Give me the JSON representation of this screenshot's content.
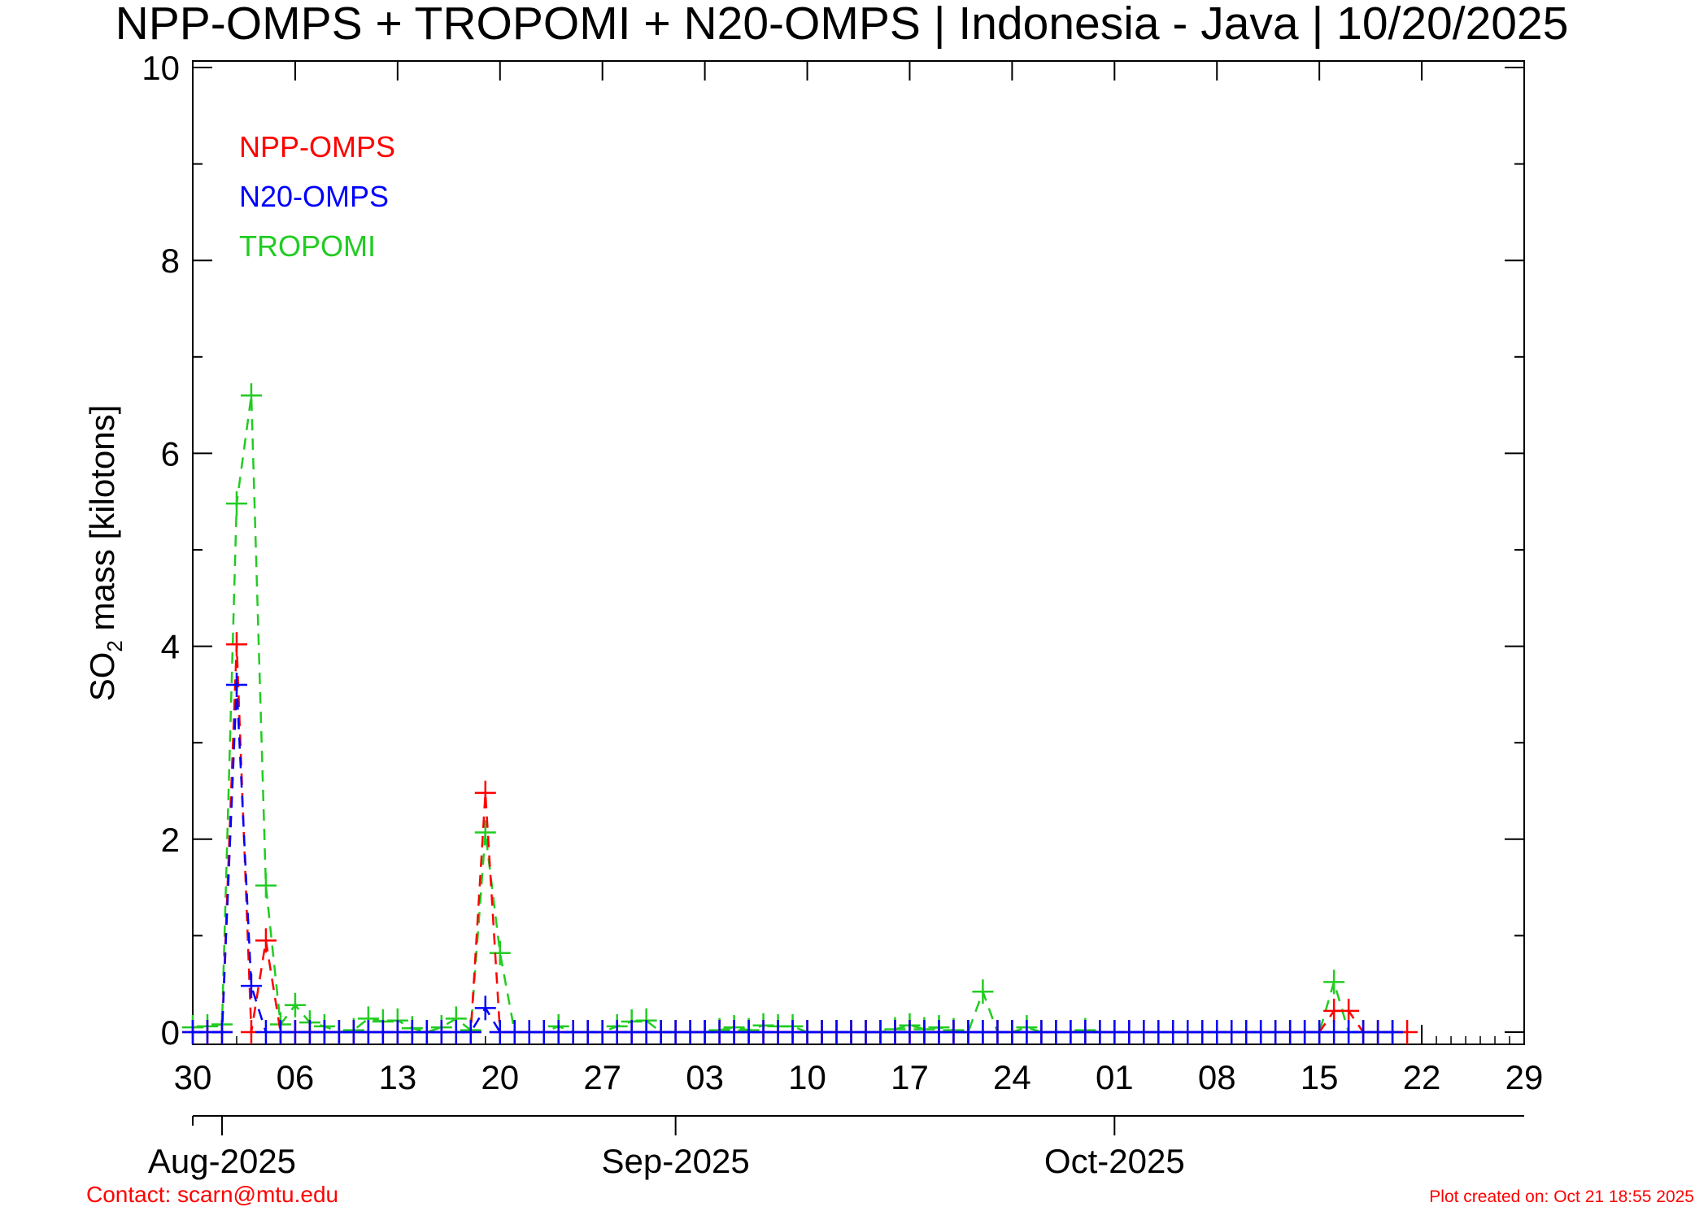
{
  "title": "NPP-OMPS + TROPOMI + N20-OMPS | Indonesia - Java | 10/20/2025",
  "footer": {
    "contact": "Contact: scarn@mtu.edu",
    "created": "Plot created on: Oct 21 18:55 2025"
  },
  "chart_data": {
    "type": "line",
    "ylabel_main": "SO",
    "ylabel_sub": "2",
    "ylabel_rest": " mass [kilotons]",
    "ylim": [
      0,
      10
    ],
    "y_ticks": [
      0,
      2,
      4,
      6,
      8,
      10
    ],
    "x_axis": {
      "start": "2025-07-30",
      "end": "2025-10-29",
      "tick_dates": [
        "2025-07-30",
        "2025-08-06",
        "2025-08-13",
        "2025-08-20",
        "2025-08-27",
        "2025-09-03",
        "2025-09-10",
        "2025-09-17",
        "2025-09-24",
        "2025-10-01",
        "2025-10-08",
        "2025-10-15",
        "2025-10-22",
        "2025-10-29"
      ],
      "tick_labels": [
        "30",
        "06",
        "13",
        "20",
        "27",
        "03",
        "10",
        "17",
        "24",
        "01",
        "08",
        "15",
        "22",
        "29"
      ],
      "months": [
        {
          "label": "Aug-2025",
          "date": "2025-08-01"
        },
        {
          "label": "Sep-2025",
          "date": "2025-09-01"
        },
        {
          "label": "Oct-2025",
          "date": "2025-10-01"
        }
      ]
    },
    "grid": false,
    "legend_position": "top-left",
    "series": [
      {
        "name": "NPP-OMPS",
        "color": "#ff0000",
        "points": [
          [
            "2025-07-30",
            0
          ],
          [
            "2025-07-31",
            0
          ],
          [
            "2025-08-01",
            0
          ],
          [
            "2025-08-02",
            4.02
          ],
          [
            "2025-08-03",
            0
          ],
          [
            "2025-08-04",
            0.95
          ],
          [
            "2025-08-05",
            0
          ],
          [
            "2025-08-06",
            0
          ],
          [
            "2025-08-07",
            0
          ],
          [
            "2025-08-08",
            0
          ],
          [
            "2025-08-09",
            0
          ],
          [
            "2025-08-10",
            0
          ],
          [
            "2025-08-11",
            0
          ],
          [
            "2025-08-12",
            0
          ],
          [
            "2025-08-13",
            0
          ],
          [
            "2025-08-14",
            0
          ],
          [
            "2025-08-15",
            0
          ],
          [
            "2025-08-16",
            0
          ],
          [
            "2025-08-17",
            0
          ],
          [
            "2025-08-18",
            0
          ],
          [
            "2025-08-19",
            2.48
          ],
          [
            "2025-08-20",
            0
          ],
          [
            "2025-08-21",
            0
          ],
          [
            "2025-08-22",
            0
          ],
          [
            "2025-08-23",
            0
          ],
          [
            "2025-08-24",
            0
          ],
          [
            "2025-08-25",
            0
          ],
          [
            "2025-08-26",
            0
          ],
          [
            "2025-08-27",
            0
          ],
          [
            "2025-08-28",
            0
          ],
          [
            "2025-08-29",
            0
          ],
          [
            "2025-08-30",
            0
          ],
          [
            "2025-08-31",
            0
          ],
          [
            "2025-09-01",
            0
          ],
          [
            "2025-09-02",
            0
          ],
          [
            "2025-09-03",
            0
          ],
          [
            "2025-09-04",
            0
          ],
          [
            "2025-09-05",
            0
          ],
          [
            "2025-09-06",
            0
          ],
          [
            "2025-09-07",
            0
          ],
          [
            "2025-09-08",
            0
          ],
          [
            "2025-09-09",
            0
          ],
          [
            "2025-09-10",
            0
          ],
          [
            "2025-09-11",
            0
          ],
          [
            "2025-09-12",
            0
          ],
          [
            "2025-09-13",
            0
          ],
          [
            "2025-09-14",
            0
          ],
          [
            "2025-09-15",
            0
          ],
          [
            "2025-09-16",
            0
          ],
          [
            "2025-09-17",
            0
          ],
          [
            "2025-09-18",
            0
          ],
          [
            "2025-09-19",
            0
          ],
          [
            "2025-09-20",
            0
          ],
          [
            "2025-09-21",
            0
          ],
          [
            "2025-09-22",
            0
          ],
          [
            "2025-09-23",
            0
          ],
          [
            "2025-09-24",
            0
          ],
          [
            "2025-09-25",
            0
          ],
          [
            "2025-09-26",
            0
          ],
          [
            "2025-09-27",
            0
          ],
          [
            "2025-09-28",
            0
          ],
          [
            "2025-09-29",
            0
          ],
          [
            "2025-09-30",
            0
          ],
          [
            "2025-10-01",
            0
          ],
          [
            "2025-10-02",
            0
          ],
          [
            "2025-10-03",
            0
          ],
          [
            "2025-10-04",
            0
          ],
          [
            "2025-10-05",
            0
          ],
          [
            "2025-10-06",
            0
          ],
          [
            "2025-10-07",
            0
          ],
          [
            "2025-10-08",
            0
          ],
          [
            "2025-10-09",
            0
          ],
          [
            "2025-10-10",
            0
          ],
          [
            "2025-10-11",
            0
          ],
          [
            "2025-10-12",
            0
          ],
          [
            "2025-10-13",
            0
          ],
          [
            "2025-10-14",
            0
          ],
          [
            "2025-10-15",
            0
          ],
          [
            "2025-10-16",
            0.22
          ],
          [
            "2025-10-17",
            0.22
          ],
          [
            "2025-10-18",
            0
          ],
          [
            "2025-10-19",
            0
          ],
          [
            "2025-10-20",
            0
          ],
          [
            "2025-10-21",
            0
          ]
        ]
      },
      {
        "name": "N20-OMPS",
        "color": "#0000ff",
        "points": [
          [
            "2025-07-30",
            0
          ],
          [
            "2025-07-31",
            0
          ],
          [
            "2025-08-01",
            0
          ],
          [
            "2025-08-02",
            3.6
          ],
          [
            "2025-08-03",
            0.48
          ],
          [
            "2025-08-04",
            0
          ],
          [
            "2025-08-05",
            0
          ],
          [
            "2025-08-06",
            0
          ],
          [
            "2025-08-07",
            0
          ],
          [
            "2025-08-08",
            0
          ],
          [
            "2025-08-09",
            0
          ],
          [
            "2025-08-10",
            0
          ],
          [
            "2025-08-11",
            0
          ],
          [
            "2025-08-12",
            0
          ],
          [
            "2025-08-13",
            0
          ],
          [
            "2025-08-14",
            0
          ],
          [
            "2025-08-15",
            0
          ],
          [
            "2025-08-16",
            0
          ],
          [
            "2025-08-17",
            0
          ],
          [
            "2025-08-18",
            0
          ],
          [
            "2025-08-19",
            0.25
          ],
          [
            "2025-08-20",
            0
          ],
          [
            "2025-08-21",
            0
          ],
          [
            "2025-08-22",
            0
          ],
          [
            "2025-08-23",
            0
          ],
          [
            "2025-08-24",
            0
          ],
          [
            "2025-08-25",
            0
          ],
          [
            "2025-08-26",
            0
          ],
          [
            "2025-08-27",
            0
          ],
          [
            "2025-08-28",
            0
          ],
          [
            "2025-08-29",
            0
          ],
          [
            "2025-08-30",
            0
          ],
          [
            "2025-08-31",
            0
          ],
          [
            "2025-09-01",
            0
          ],
          [
            "2025-09-02",
            0
          ],
          [
            "2025-09-03",
            0
          ],
          [
            "2025-09-04",
            0
          ],
          [
            "2025-09-05",
            0
          ],
          [
            "2025-09-06",
            0
          ],
          [
            "2025-09-07",
            0
          ],
          [
            "2025-09-08",
            0
          ],
          [
            "2025-09-09",
            0
          ],
          [
            "2025-09-10",
            0
          ],
          [
            "2025-09-11",
            0
          ],
          [
            "2025-09-12",
            0
          ],
          [
            "2025-09-13",
            0
          ],
          [
            "2025-09-14",
            0
          ],
          [
            "2025-09-15",
            0
          ],
          [
            "2025-09-16",
            0
          ],
          [
            "2025-09-17",
            0
          ],
          [
            "2025-09-18",
            0
          ],
          [
            "2025-09-19",
            0
          ],
          [
            "2025-09-20",
            0
          ],
          [
            "2025-09-21",
            0
          ],
          [
            "2025-09-22",
            0
          ],
          [
            "2025-09-23",
            0
          ],
          [
            "2025-09-24",
            0
          ],
          [
            "2025-09-25",
            0
          ],
          [
            "2025-09-26",
            0
          ],
          [
            "2025-09-27",
            0
          ],
          [
            "2025-09-28",
            0
          ],
          [
            "2025-09-29",
            0
          ],
          [
            "2025-09-30",
            0
          ],
          [
            "2025-10-01",
            0
          ],
          [
            "2025-10-02",
            0
          ],
          [
            "2025-10-03",
            0
          ],
          [
            "2025-10-04",
            0
          ],
          [
            "2025-10-05",
            0
          ],
          [
            "2025-10-06",
            0
          ],
          [
            "2025-10-07",
            0
          ],
          [
            "2025-10-08",
            0
          ],
          [
            "2025-10-09",
            0
          ],
          [
            "2025-10-10",
            0
          ],
          [
            "2025-10-11",
            0
          ],
          [
            "2025-10-12",
            0
          ],
          [
            "2025-10-13",
            0
          ],
          [
            "2025-10-14",
            0
          ],
          [
            "2025-10-15",
            0
          ],
          [
            "2025-10-16",
            0
          ],
          [
            "2025-10-17",
            0
          ],
          [
            "2025-10-18",
            0
          ],
          [
            "2025-10-19",
            0
          ],
          [
            "2025-10-20",
            0
          ]
        ]
      },
      {
        "name": "TROPOMI",
        "color": "#22cc22",
        "points": [
          [
            "2025-07-30",
            0.05
          ],
          [
            "2025-07-31",
            0.06
          ],
          [
            "2025-08-01",
            0.08
          ],
          [
            "2025-08-02",
            5.48
          ],
          [
            "2025-08-03",
            6.6
          ],
          [
            "2025-08-04",
            1.52
          ],
          [
            "2025-08-05",
            0.08
          ],
          [
            "2025-08-06",
            0.28
          ],
          [
            "2025-08-07",
            0.1
          ],
          [
            "2025-08-08",
            0.06
          ],
          [
            "2025-08-09",
            0
          ],
          [
            "2025-08-10",
            0.02
          ],
          [
            "2025-08-11",
            0.14
          ],
          [
            "2025-08-12",
            0.11
          ],
          [
            "2025-08-13",
            0.12
          ],
          [
            "2025-08-14",
            0.04
          ],
          [
            "2025-08-15",
            0
          ],
          [
            "2025-08-16",
            0.05
          ],
          [
            "2025-08-17",
            0.14
          ],
          [
            "2025-08-18",
            0.02
          ],
          [
            "2025-08-19",
            2.07
          ],
          [
            "2025-08-20",
            0.82
          ],
          [
            "2025-08-21",
            0
          ],
          [
            "2025-08-22",
            0
          ],
          [
            "2025-08-23",
            0
          ],
          [
            "2025-08-24",
            0.06
          ],
          [
            "2025-08-25",
            0
          ],
          [
            "2025-08-26",
            0
          ],
          [
            "2025-08-27",
            0
          ],
          [
            "2025-08-28",
            0.06
          ],
          [
            "2025-08-29",
            0.11
          ],
          [
            "2025-08-30",
            0.12
          ],
          [
            "2025-08-31",
            0
          ],
          [
            "2025-09-01",
            0
          ],
          [
            "2025-09-02",
            0
          ],
          [
            "2025-09-03",
            0
          ],
          [
            "2025-09-04",
            0.02
          ],
          [
            "2025-09-05",
            0.05
          ],
          [
            "2025-09-06",
            0.02
          ],
          [
            "2025-09-07",
            0.07
          ],
          [
            "2025-09-08",
            0.06
          ],
          [
            "2025-09-09",
            0.06
          ],
          [
            "2025-09-10",
            0
          ],
          [
            "2025-09-11",
            0
          ],
          [
            "2025-09-12",
            0
          ],
          [
            "2025-09-13",
            0
          ],
          [
            "2025-09-14",
            0
          ],
          [
            "2025-09-15",
            0
          ],
          [
            "2025-09-16",
            0.03
          ],
          [
            "2025-09-17",
            0.07
          ],
          [
            "2025-09-18",
            0.03
          ],
          [
            "2025-09-19",
            0.05
          ],
          [
            "2025-09-20",
            0.02
          ],
          [
            "2025-09-21",
            0
          ],
          [
            "2025-09-22",
            0.42
          ],
          [
            "2025-09-23",
            0
          ],
          [
            "2025-09-24",
            0
          ],
          [
            "2025-09-25",
            0.05
          ],
          [
            "2025-09-26",
            0
          ],
          [
            "2025-09-27",
            0
          ],
          [
            "2025-09-28",
            0
          ],
          [
            "2025-09-29",
            0.02
          ],
          [
            "2025-09-30",
            0
          ],
          [
            "2025-10-01",
            0
          ],
          [
            "2025-10-02",
            0
          ],
          [
            "2025-10-03",
            0
          ],
          [
            "2025-10-04",
            0
          ],
          [
            "2025-10-05",
            0
          ],
          [
            "2025-10-06",
            0
          ],
          [
            "2025-10-07",
            0
          ],
          [
            "2025-10-08",
            0
          ],
          [
            "2025-10-09",
            0
          ],
          [
            "2025-10-10",
            0
          ],
          [
            "2025-10-11",
            0
          ],
          [
            "2025-10-12",
            0
          ],
          [
            "2025-10-13",
            0
          ],
          [
            "2025-10-14",
            0
          ],
          [
            "2025-10-15",
            0
          ],
          [
            "2025-10-16",
            0.52
          ],
          [
            "2025-10-17",
            0
          ],
          [
            "2025-10-18",
            0
          ],
          [
            "2025-10-19",
            0
          ],
          [
            "2025-10-20",
            0
          ]
        ]
      }
    ]
  }
}
